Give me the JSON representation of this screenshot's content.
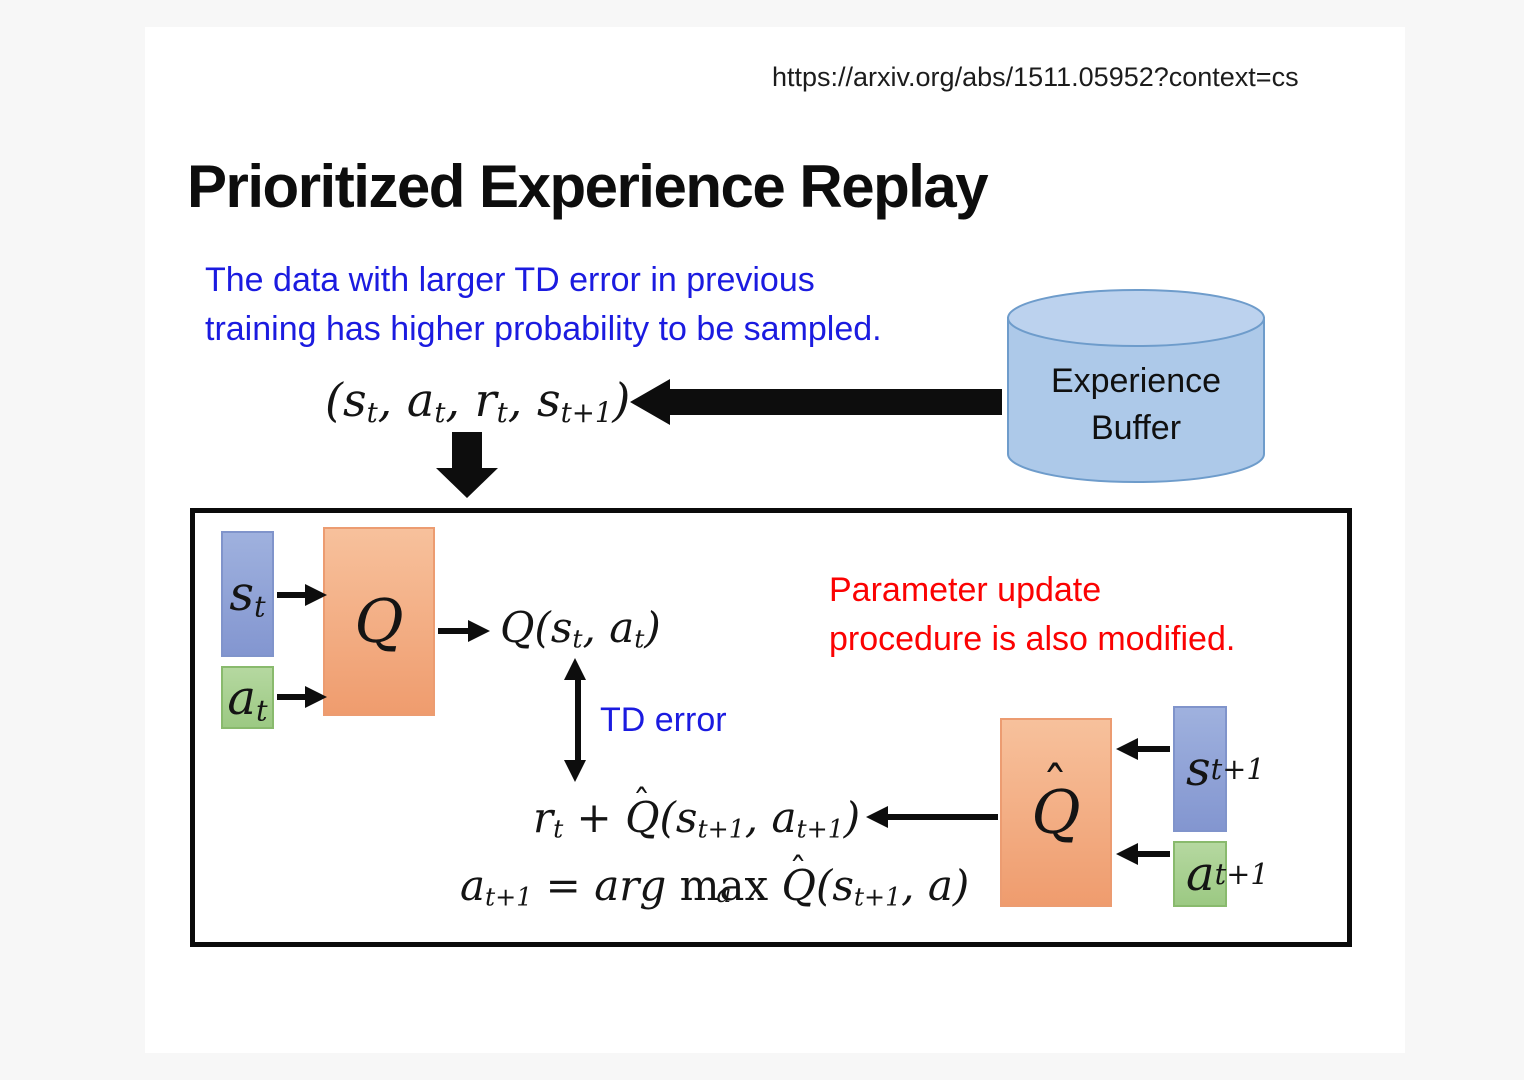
{
  "page": {
    "url": "https://arxiv.org/abs/1511.05952?context=cs",
    "title": "Prioritized Experience Replay"
  },
  "intro": {
    "line1": "The data with larger TD error in previous",
    "line2": "training has higher probability to be sampled."
  },
  "buffer": {
    "line1": "Experience",
    "line2": "Buffer"
  },
  "notes": {
    "td_error": "TD error",
    "param_line1": "Parameter update",
    "param_line2": "procedure is also modified."
  },
  "math": {
    "tuple": [
      {
        "i": "(s"
      },
      {
        "sub": "t"
      },
      {
        "i": ", a"
      },
      {
        "sub": "t"
      },
      {
        "i": ", r"
      },
      {
        "sub": "t"
      },
      {
        "i": ", s"
      },
      {
        "sub": "t+1"
      },
      {
        "i": ")"
      }
    ],
    "q_output": [
      {
        "i": "Q(s"
      },
      {
        "sub": "t"
      },
      {
        "i": ", a"
      },
      {
        "sub": "t"
      },
      {
        "i": ")"
      }
    ],
    "target": [
      {
        "i": "r"
      },
      {
        "sub": "t"
      },
      {
        "r": " + "
      },
      {
        "hat": "Q"
      },
      {
        "i": "(s"
      },
      {
        "sub": "t+1"
      },
      {
        "i": ", a"
      },
      {
        "sub": "t+1"
      },
      {
        "i": ")"
      }
    ],
    "argmax": [
      {
        "i": "a"
      },
      {
        "sub": "t+1"
      },
      {
        "r": " = "
      },
      {
        "i": "arg "
      },
      {
        "stack": {
          "top": "max",
          "bottom": "a"
        }
      },
      {
        "r": " "
      },
      {
        "hat": "Q"
      },
      {
        "i": "(s"
      },
      {
        "sub": "t+1"
      },
      {
        "i": ", a)"
      }
    ],
    "labels": {
      "st": [
        {
          "i": "s"
        },
        {
          "sub": "t"
        }
      ],
      "at": [
        {
          "i": "a"
        },
        {
          "sub": "t"
        }
      ],
      "q": [
        {
          "i": "Q"
        }
      ],
      "qhat": [
        {
          "hat": "Q"
        }
      ],
      "st1": [
        {
          "i": "s"
        },
        {
          "sub": "t+1"
        }
      ],
      "at1": [
        {
          "i": "a"
        },
        {
          "sub": "t+1"
        }
      ]
    }
  },
  "palette": {
    "state_box_blue": "#8FA3D6",
    "action_box_green": "#A9D18E",
    "network_box_orange": "#F4A97F",
    "cylinder_fill": "#ADC9E9",
    "cylinder_top": "#BCD2EE",
    "cylinder_stroke": "#6E9CCB",
    "text_blue": "#1B1BE0",
    "text_red": "#FB0202",
    "ink_black": "#0D0D0D"
  }
}
